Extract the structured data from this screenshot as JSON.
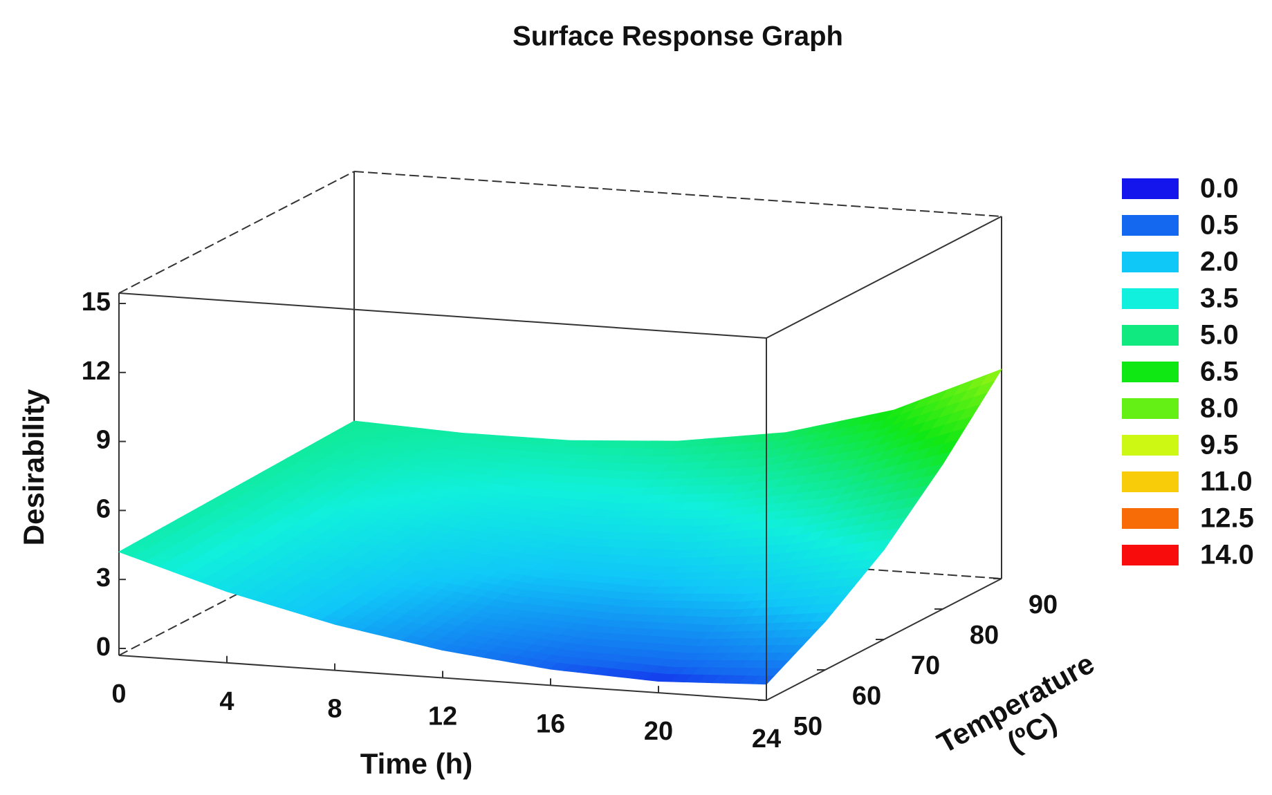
{
  "chart_data": {
    "type": "surface",
    "title": "Surface Response Graph",
    "xlabel": "Time (h)",
    "ylabel": [
      "Temperature",
      "(ºC)"
    ],
    "zlabel": "Desirability",
    "x": [
      0,
      4,
      8,
      12,
      16,
      20,
      24
    ],
    "y": [
      50,
      60,
      70,
      80,
      90
    ],
    "values": [
      [
        4.2,
        2.8,
        1.7,
        0.9,
        0.4,
        0.2,
        0.4
      ],
      [
        4.3,
        3.0,
        2.0,
        1.4,
        1.2,
        1.3,
        1.8
      ],
      [
        4.4,
        3.3,
        2.6,
        2.2,
        2.2,
        2.7,
        3.6
      ],
      [
        4.5,
        3.8,
        3.4,
        3.3,
        3.7,
        4.6,
        6.0
      ],
      [
        4.6,
        4.4,
        4.4,
        4.7,
        5.4,
        6.7,
        8.8
      ]
    ],
    "xlim": [
      0,
      24
    ],
    "ylim": [
      50,
      90
    ],
    "zlim": [
      0,
      15
    ],
    "xticks": [
      0,
      4,
      8,
      12,
      16,
      20,
      24
    ],
    "yticks": [
      50,
      60,
      70,
      80,
      90
    ],
    "zticks": [
      0,
      3,
      6,
      9,
      12,
      15
    ],
    "legend": [
      {
        "value": 0,
        "label": "0.0",
        "color": "#1414ec"
      },
      {
        "value": 0.5,
        "label": "0.5",
        "color": "#1468f0"
      },
      {
        "value": 2,
        "label": "2.0",
        "color": "#10c8f8"
      },
      {
        "value": 3.5,
        "label": "3.5",
        "color": "#10f0dc"
      },
      {
        "value": 5,
        "label": "5.0",
        "color": "#10e880"
      },
      {
        "value": 6.5,
        "label": "6.5",
        "color": "#10e814"
      },
      {
        "value": 8,
        "label": "8.0",
        "color": "#64f014"
      },
      {
        "value": 9.5,
        "label": "9.5",
        "color": "#ccf814"
      },
      {
        "value": 11,
        "label": "11.0",
        "color": "#f8cc08"
      },
      {
        "value": 12.5,
        "label": "12.5",
        "color": "#f86c08"
      },
      {
        "value": 14,
        "label": "14.0",
        "color": "#f80c0c"
      }
    ]
  }
}
